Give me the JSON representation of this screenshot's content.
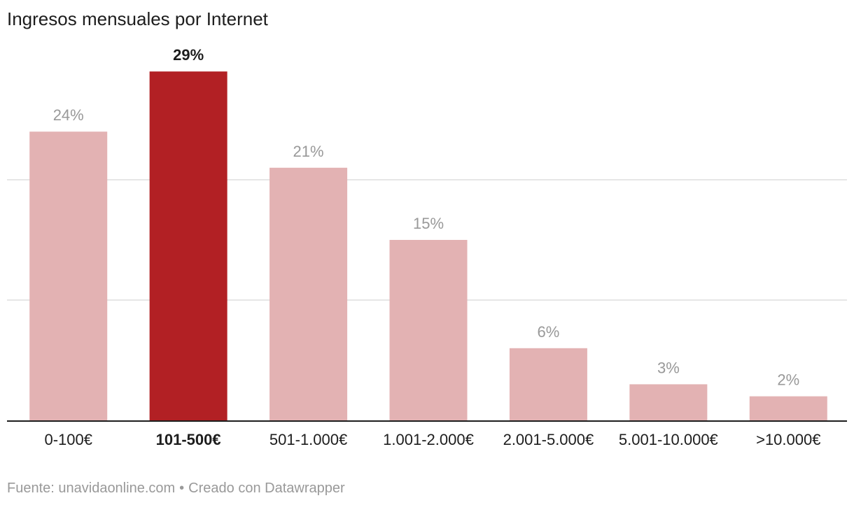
{
  "title": "Ingresos mensuales por Internet",
  "footer": {
    "source": "Fuente: unavidaonline.com",
    "separator": "•",
    "credit": "Creado con Datawrapper"
  },
  "chart_data": {
    "type": "bar",
    "title": "Ingresos mensuales por Internet",
    "xlabel": "",
    "ylabel": "",
    "ylim": [
      0,
      30
    ],
    "grid": true,
    "gridlines": [
      10,
      20
    ],
    "legend": "none",
    "categories": [
      "0-100€",
      "101-500€",
      "501-1.000€",
      "1.001-2.000€",
      "2.001-5.000€",
      "5.001-10.000€",
      ">10.000€"
    ],
    "values": [
      24,
      29,
      21,
      15,
      6,
      3,
      2
    ],
    "value_labels": [
      "24%",
      "29%",
      "21%",
      "15%",
      "6%",
      "3%",
      "2%"
    ],
    "highlight_index": 1,
    "colors": {
      "bar": "#e3b2b3",
      "highlight": "#b22024",
      "label": "#999999",
      "highlight_label": "#1d1d1d",
      "category": "#1d1d1d",
      "grid": "#dddddd",
      "baseline": "#1d1d1d"
    }
  }
}
